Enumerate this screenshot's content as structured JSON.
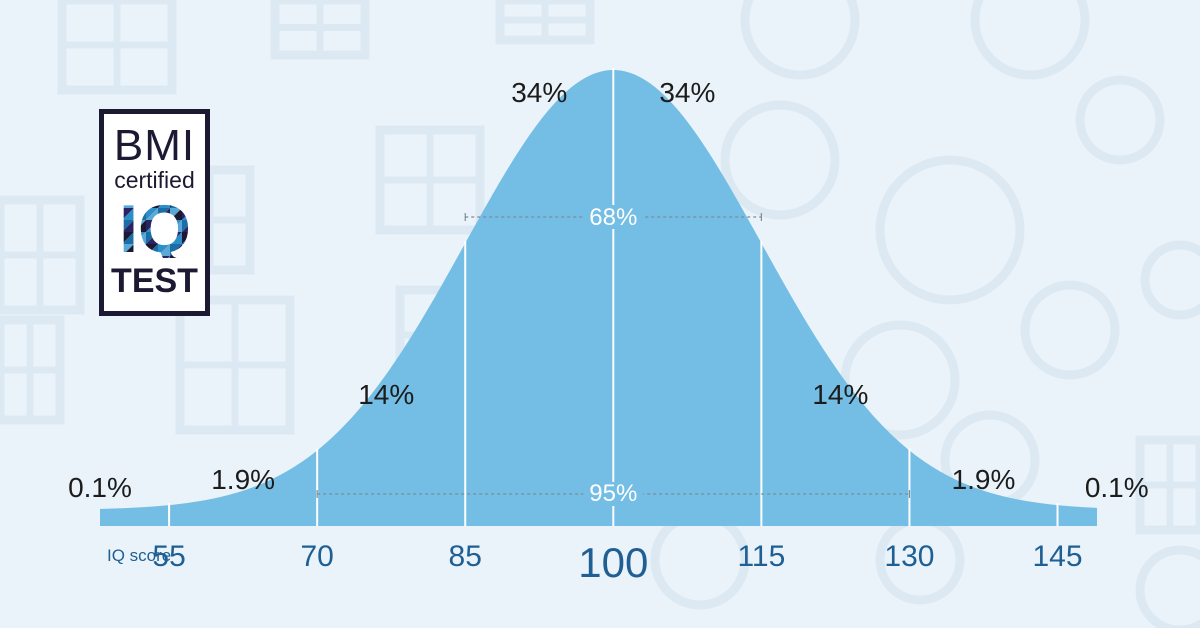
{
  "colors": {
    "background": "#eaf3f9",
    "pattern": "#dce9f3",
    "curve_fill": "#74bde4",
    "divider": "#ffffff",
    "range_line": "#7e8c96",
    "tick_text": "#1f5f93",
    "pct_text": "#1c1c1c",
    "badge_border": "#1c1a33",
    "badge_mosaic": [
      "#1c1a33",
      "#2d8fc8",
      "#1b6fa6",
      "#5ba7d6",
      "#2a2466"
    ]
  },
  "badge": {
    "line1": "BMI",
    "line2": "certified",
    "line3": "IQ",
    "line4": "TEST"
  },
  "chart_data": {
    "type": "area",
    "description_mean": 100,
    "sd": 15,
    "x_range": [
      48,
      149
    ],
    "xlabel": "IQ score",
    "ticks": [
      55,
      70,
      85,
      100,
      115,
      130,
      145
    ],
    "tick_labels": [
      "55",
      "70",
      "85",
      "100",
      "115",
      "130",
      "145"
    ],
    "dividers": [
      55,
      70,
      85,
      100,
      115,
      130,
      145
    ],
    "segments": [
      {
        "label": "0.1%",
        "x": 48
      },
      {
        "label": "1.9%",
        "x": 62.5
      },
      {
        "label": "14%",
        "x": 77
      },
      {
        "label": "34%",
        "x": 92.5
      },
      {
        "label": "34%",
        "x": 107.5
      },
      {
        "label": "14%",
        "x": 123
      },
      {
        "label": "1.9%",
        "x": 137.5
      },
      {
        "label": "0.1%",
        "x": 151
      }
    ],
    "ranges": [
      {
        "label": "68%",
        "from": 85,
        "to": 115
      },
      {
        "label": "95%",
        "from": 70,
        "to": 130
      }
    ]
  }
}
